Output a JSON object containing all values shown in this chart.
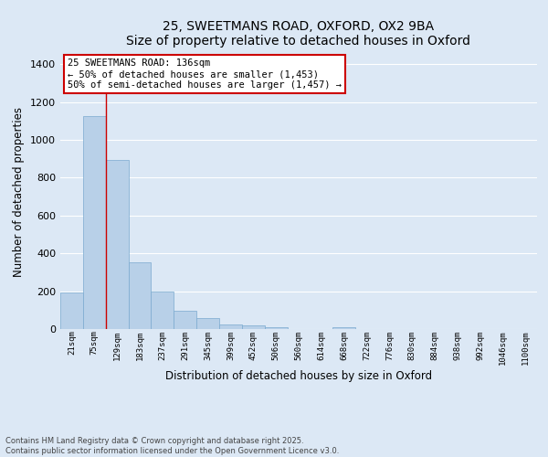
{
  "title_line1": "25, SWEETMANS ROAD, OXFORD, OX2 9BA",
  "title_line2": "Size of property relative to detached houses in Oxford",
  "xlabel": "Distribution of detached houses by size in Oxford",
  "ylabel": "Number of detached properties",
  "categories": [
    "21sqm",
    "75sqm",
    "129sqm",
    "183sqm",
    "237sqm",
    "291sqm",
    "345sqm",
    "399sqm",
    "452sqm",
    "506sqm",
    "560sqm",
    "614sqm",
    "668sqm",
    "722sqm",
    "776sqm",
    "830sqm",
    "884sqm",
    "938sqm",
    "992sqm",
    "1046sqm",
    "1100sqm"
  ],
  "values": [
    195,
    1125,
    895,
    355,
    197,
    95,
    57,
    22,
    18,
    12,
    0,
    0,
    12,
    0,
    0,
    0,
    0,
    0,
    0,
    0,
    0
  ],
  "bar_color": "#b8d0e8",
  "bar_edge_color": "#7aaacf",
  "vline_x": 1.5,
  "vline_color": "#cc0000",
  "annotation_text": "25 SWEETMANS ROAD: 136sqm\n← 50% of detached houses are smaller (1,453)\n50% of semi-detached houses are larger (1,457) →",
  "annotation_box_color": "#ffffff",
  "annotation_box_edge": "#cc0000",
  "ylim": [
    0,
    1450
  ],
  "yticks": [
    0,
    200,
    400,
    600,
    800,
    1000,
    1200,
    1400
  ],
  "background_color": "#dce8f5",
  "grid_color": "#ffffff",
  "footer_text": "Contains HM Land Registry data © Crown copyright and database right 2025.\nContains public sector information licensed under the Open Government Licence v3.0."
}
